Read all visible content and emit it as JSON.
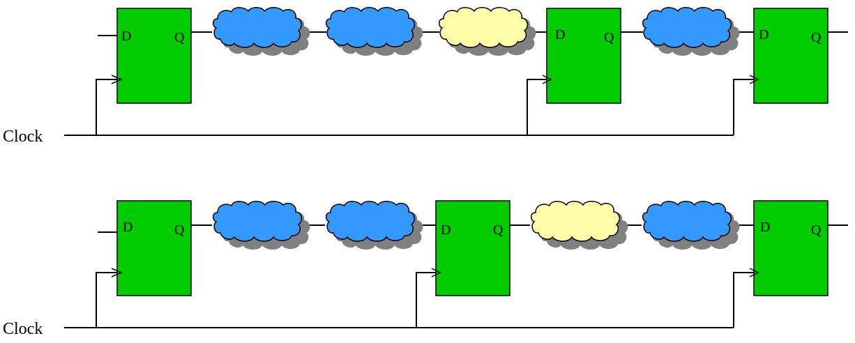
{
  "flipflop": {
    "d_label": "D",
    "q_label": "Q"
  },
  "clock_label": "Clock",
  "colors": {
    "flipflop_fill": "#00cc00",
    "logic_blue": "#3399ff",
    "logic_yellow": "#ffffaa",
    "shadow": "#808080"
  },
  "rows": [
    {
      "clock_label": "Clock",
      "stages": [
        {
          "type": "flipflop"
        },
        {
          "type": "logic",
          "color": "blue"
        },
        {
          "type": "logic",
          "color": "blue"
        },
        {
          "type": "logic",
          "color": "yellow"
        },
        {
          "type": "flipflop"
        },
        {
          "type": "logic",
          "color": "blue"
        },
        {
          "type": "flipflop"
        }
      ]
    },
    {
      "clock_label": "Clock",
      "stages": [
        {
          "type": "flipflop"
        },
        {
          "type": "logic",
          "color": "blue"
        },
        {
          "type": "logic",
          "color": "blue"
        },
        {
          "type": "flipflop"
        },
        {
          "type": "logic",
          "color": "yellow"
        },
        {
          "type": "logic",
          "color": "blue"
        },
        {
          "type": "flipflop"
        }
      ]
    }
  ]
}
